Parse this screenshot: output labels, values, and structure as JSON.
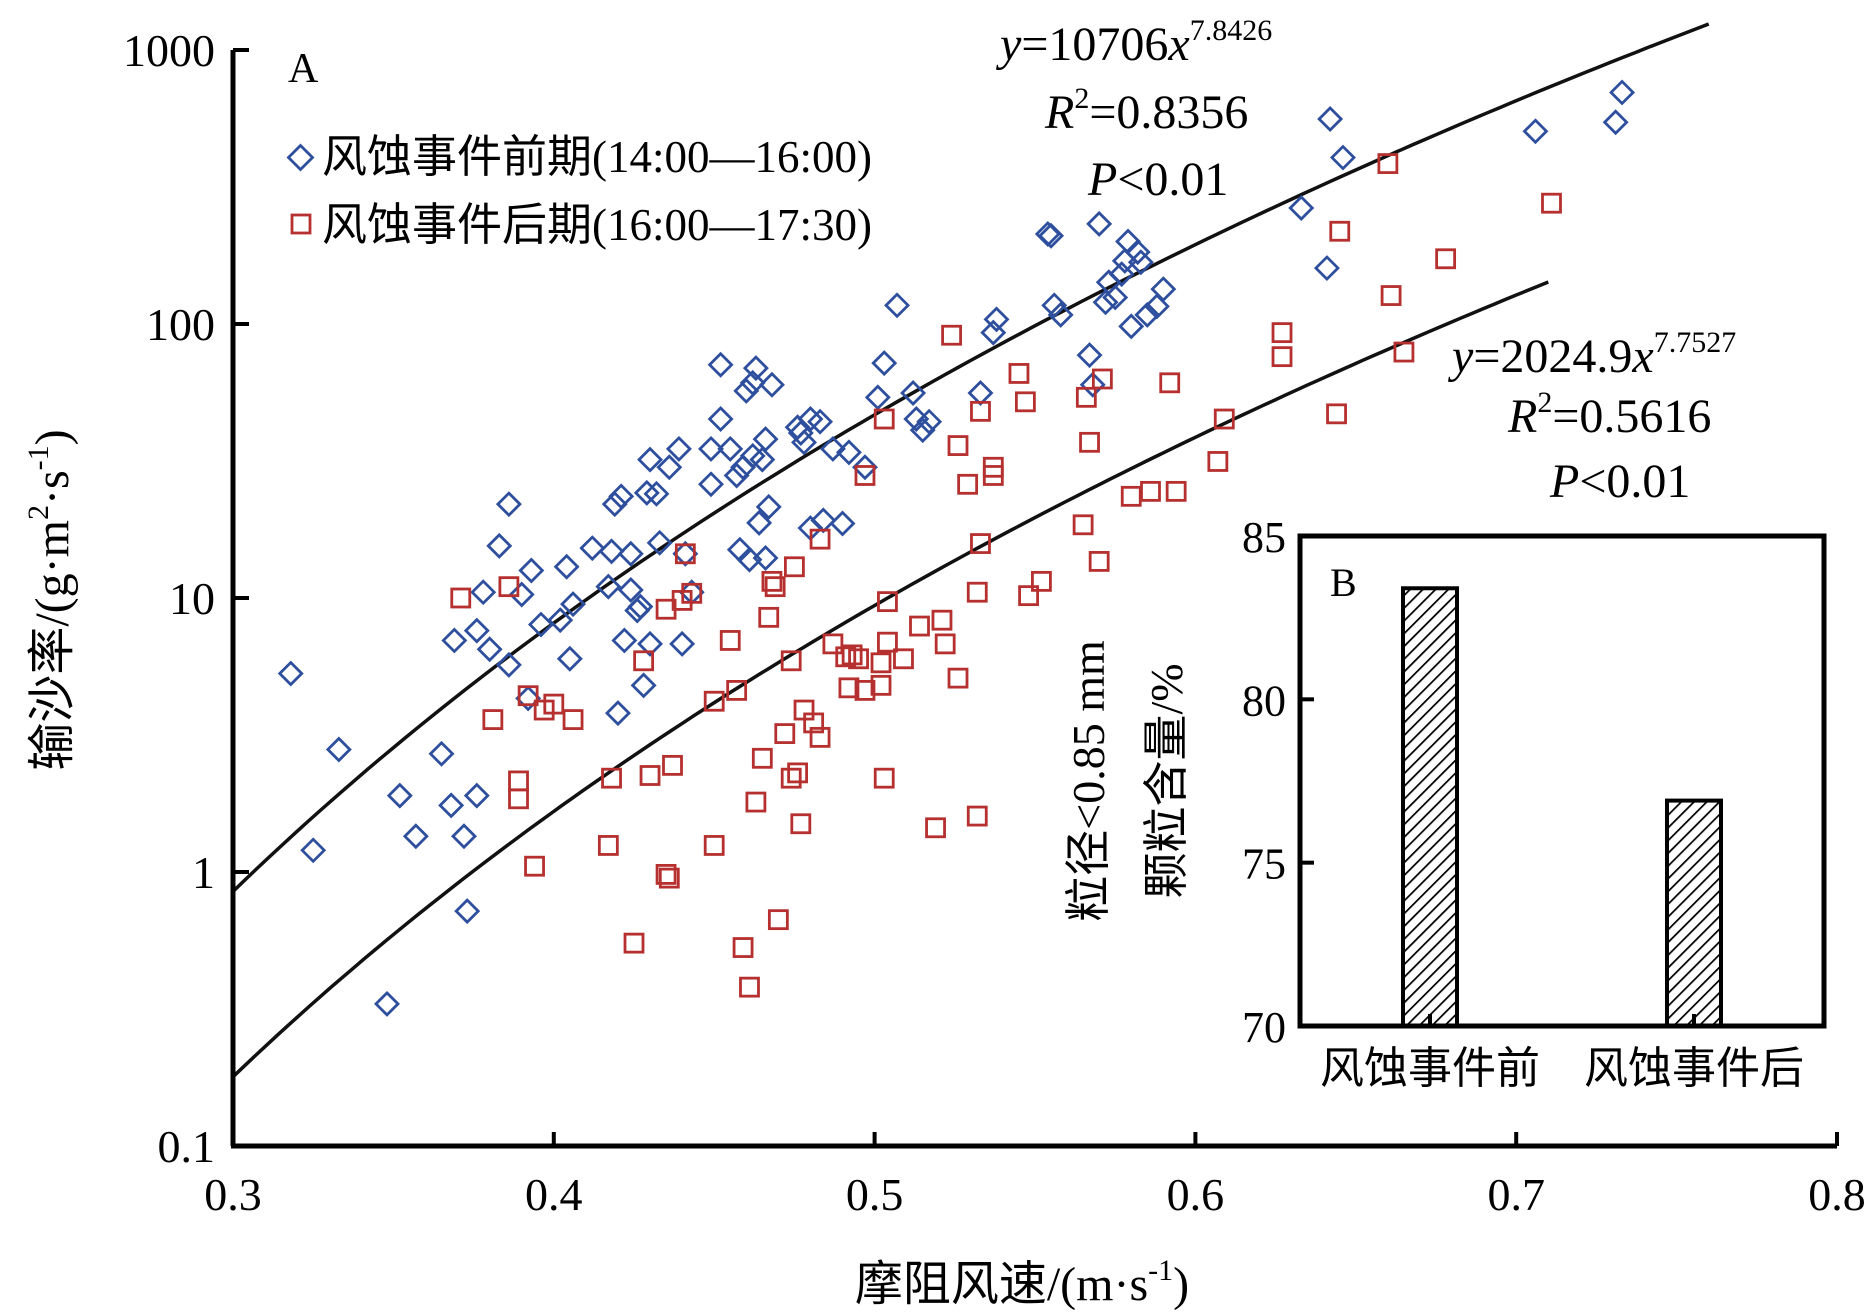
{
  "colors": {
    "before": "#2e4f9e",
    "after": "#b5302e",
    "axis": "#000000",
    "curve": "#111111"
  },
  "chart_data": [
    {
      "panel": "A",
      "type": "scatter",
      "xlabel": "摩阻风速/(m·s",
      "xlabel_sup": "-1",
      "xlabel_close": ")",
      "ylabel": "输沙率/(g·m",
      "ylabel_sup1": "2",
      "ylabel_mid": "·s",
      "ylabel_sup2": "-1",
      "ylabel_close": ")",
      "xlim": [
        0.3,
        0.8
      ],
      "ylim": [
        0.1,
        1000
      ],
      "yscale": "log",
      "x_ticks": [
        0.3,
        0.4,
        0.5,
        0.6,
        0.7,
        0.8
      ],
      "x_tick_labels": [
        "0.3",
        "0.4",
        "0.5",
        "0.6",
        "0.7",
        "0.8"
      ],
      "y_ticks": [
        0.1,
        1,
        10,
        100,
        1000
      ],
      "y_tick_labels": [
        "0.1",
        "1",
        "10",
        "100",
        "1000"
      ],
      "grid": false,
      "legend_position": "top-left",
      "series": [
        {
          "name": "风蚀事件前期(14:00—16:00)",
          "marker": "diamond",
          "color": "#2e4f9e",
          "fit": {
            "a": 10706,
            "b": 7.8426,
            "x_range": [
              0.3,
              0.76
            ]
          },
          "points": [
            [
              0.318,
              5.3
            ],
            [
              0.325,
              1.2
            ],
            [
              0.333,
              2.8
            ],
            [
              0.348,
              0.33
            ],
            [
              0.352,
              1.9
            ],
            [
              0.357,
              1.35
            ],
            [
              0.365,
              2.7
            ],
            [
              0.368,
              1.75
            ],
            [
              0.369,
              7.0
            ],
            [
              0.372,
              1.35
            ],
            [
              0.373,
              0.72
            ],
            [
              0.376,
              1.9
            ],
            [
              0.378,
              10.5
            ],
            [
              0.376,
              7.6
            ],
            [
              0.38,
              6.5
            ],
            [
              0.383,
              15.5
            ],
            [
              0.386,
              5.7
            ],
            [
              0.386,
              22.0
            ],
            [
              0.39,
              10.3
            ],
            [
              0.392,
              4.3
            ],
            [
              0.393,
              12.6
            ],
            [
              0.396,
              8.0
            ],
            [
              0.402,
              8.3
            ],
            [
              0.404,
              13.0
            ],
            [
              0.405,
              6.0
            ],
            [
              0.406,
              9.5
            ],
            [
              0.412,
              15.2
            ],
            [
              0.417,
              11.0
            ],
            [
              0.418,
              14.8
            ],
            [
              0.419,
              22.0
            ],
            [
              0.421,
              23.5
            ],
            [
              0.42,
              3.8
            ],
            [
              0.424,
              10.7
            ],
            [
              0.422,
              7.0
            ],
            [
              0.424,
              14.5
            ],
            [
              0.426,
              9.0
            ],
            [
              0.427,
              9.3
            ],
            [
              0.428,
              4.8
            ],
            [
              0.429,
              24.2
            ],
            [
              0.43,
              32.0
            ],
            [
              0.43,
              6.8
            ],
            [
              0.432,
              24.0
            ],
            [
              0.433,
              15.9
            ],
            [
              0.436,
              30.0
            ],
            [
              0.439,
              35.0
            ],
            [
              0.44,
              6.8
            ],
            [
              0.441,
              14.5
            ],
            [
              0.443,
              10.5
            ],
            [
              0.449,
              35.0
            ],
            [
              0.449,
              26.0
            ],
            [
              0.452,
              71.0
            ],
            [
              0.452,
              45.0
            ],
            [
              0.455,
              35.0
            ],
            [
              0.457,
              28.0
            ],
            [
              0.458,
              15.0
            ],
            [
              0.459,
              30.0
            ],
            [
              0.46,
              57.0
            ],
            [
              0.461,
              13.8
            ],
            [
              0.462,
              33.0
            ],
            [
              0.463,
              69.0
            ],
            [
              0.462,
              61.0
            ],
            [
              0.464,
              18.8
            ],
            [
              0.465,
              32.0
            ],
            [
              0.466,
              38.0
            ],
            [
              0.466,
              14.0
            ],
            [
              0.467,
              21.5
            ],
            [
              0.468,
              60.0
            ],
            [
              0.476,
              42.0
            ],
            [
              0.477,
              40.0
            ],
            [
              0.478,
              37.0
            ],
            [
              0.48,
              18.0
            ],
            [
              0.48,
              45.0
            ],
            [
              0.483,
              44.0
            ],
            [
              0.484,
              19.2
            ],
            [
              0.487,
              35.0
            ],
            [
              0.49,
              18.7
            ],
            [
              0.492,
              34.0
            ],
            [
              0.497,
              30.0
            ],
            [
              0.501,
              54.0
            ],
            [
              0.503,
              72.0
            ],
            [
              0.507,
              117.0
            ],
            [
              0.512,
              56.0
            ],
            [
              0.513,
              45.0
            ],
            [
              0.515,
              41.0
            ],
            [
              0.517,
              44.0
            ],
            [
              0.533,
              56.0
            ],
            [
              0.537,
              93.0
            ],
            [
              0.538,
              104.0
            ],
            [
              0.554,
              213.0
            ],
            [
              0.555,
              210.0
            ],
            [
              0.556,
              117.0
            ],
            [
              0.558,
              108.0
            ],
            [
              0.567,
              77.0
            ],
            [
              0.568,
              60.0
            ],
            [
              0.57,
              232.0
            ],
            [
              0.572,
              120.0
            ],
            [
              0.573,
              142.0
            ],
            [
              0.575,
              125.0
            ],
            [
              0.577,
              152.0
            ],
            [
              0.578,
              170.0
            ],
            [
              0.579,
              200.0
            ],
            [
              0.58,
              98.0
            ],
            [
              0.582,
              183.0
            ],
            [
              0.583,
              168.0
            ],
            [
              0.585,
              108.0
            ],
            [
              0.588,
              116.0
            ],
            [
              0.59,
              134.0
            ],
            [
              0.633,
              265.0
            ],
            [
              0.641,
              160.0
            ],
            [
              0.642,
              560.0
            ],
            [
              0.646,
              405.0
            ],
            [
              0.706,
              505.0
            ],
            [
              0.731,
              545.0
            ],
            [
              0.733,
              700.0
            ]
          ]
        },
        {
          "name": "风蚀事件后期(16:00—17:30)",
          "marker": "square",
          "color": "#b5302e",
          "fit": {
            "a": 2024.9,
            "b": 7.7527,
            "x_range": [
              0.3,
              0.71
            ]
          },
          "points": [
            [
              0.371,
              10.0
            ],
            [
              0.381,
              3.6
            ],
            [
              0.386,
              11.0
            ],
            [
              0.389,
              2.15
            ],
            [
              0.389,
              1.85
            ],
            [
              0.392,
              4.4
            ],
            [
              0.394,
              1.05
            ],
            [
              0.397,
              3.9
            ],
            [
              0.4,
              4.1
            ],
            [
              0.406,
              3.6
            ],
            [
              0.417,
              1.25
            ],
            [
              0.418,
              2.2
            ],
            [
              0.425,
              0.55
            ],
            [
              0.428,
              5.9
            ],
            [
              0.43,
              2.25
            ],
            [
              0.435,
              9.1
            ],
            [
              0.435,
              0.98
            ],
            [
              0.436,
              0.95
            ],
            [
              0.437,
              2.45
            ],
            [
              0.44,
              9.8
            ],
            [
              0.441,
              14.5
            ],
            [
              0.443,
              10.4
            ],
            [
              0.45,
              4.2
            ],
            [
              0.45,
              1.25
            ],
            [
              0.455,
              7.0
            ],
            [
              0.457,
              4.6
            ],
            [
              0.459,
              0.53
            ],
            [
              0.461,
              0.38
            ],
            [
              0.463,
              1.8
            ],
            [
              0.465,
              2.6
            ],
            [
              0.467,
              8.5
            ],
            [
              0.468,
              11.5
            ],
            [
              0.469,
              11.0
            ],
            [
              0.47,
              0.67
            ],
            [
              0.472,
              3.2
            ],
            [
              0.474,
              5.9
            ],
            [
              0.474,
              2.2
            ],
            [
              0.475,
              13.0
            ],
            [
              0.476,
              2.3
            ],
            [
              0.477,
              1.5
            ],
            [
              0.478,
              3.9
            ],
            [
              0.481,
              3.5
            ],
            [
              0.483,
              3.1
            ],
            [
              0.483,
              16.4
            ],
            [
              0.487,
              6.8
            ],
            [
              0.491,
              6.1
            ],
            [
              0.492,
              4.7
            ],
            [
              0.493,
              6.2
            ],
            [
              0.495,
              6.0
            ],
            [
              0.497,
              28.0
            ],
            [
              0.497,
              4.6
            ],
            [
              0.502,
              5.8
            ],
            [
              0.502,
              4.8
            ],
            [
              0.503,
              2.2
            ],
            [
              0.503,
              45.0
            ],
            [
              0.504,
              6.9
            ],
            [
              0.504,
              9.7
            ],
            [
              0.509,
              6.0
            ],
            [
              0.514,
              7.9
            ],
            [
              0.519,
              1.45
            ],
            [
              0.521,
              8.3
            ],
            [
              0.522,
              6.8
            ],
            [
              0.524,
              91.0
            ],
            [
              0.526,
              5.1
            ],
            [
              0.526,
              36.0
            ],
            [
              0.529,
              26.0
            ],
            [
              0.532,
              10.5
            ],
            [
              0.532,
              1.6
            ],
            [
              0.533,
              15.8
            ],
            [
              0.533,
              48.0
            ],
            [
              0.537,
              28.0
            ],
            [
              0.537,
              30.0
            ],
            [
              0.545,
              66.0
            ],
            [
              0.547,
              52.0
            ],
            [
              0.548,
              10.2
            ],
            [
              0.552,
              11.5
            ],
            [
              0.565,
              18.5
            ],
            [
              0.566,
              54.0
            ],
            [
              0.567,
              37.0
            ],
            [
              0.57,
              13.6
            ],
            [
              0.571,
              63.0
            ],
            [
              0.58,
              23.5
            ],
            [
              0.586,
              24.5
            ],
            [
              0.592,
              61.0
            ],
            [
              0.594,
              24.5
            ],
            [
              0.607,
              31.5
            ],
            [
              0.609,
              45.0
            ],
            [
              0.627,
              93.0
            ],
            [
              0.627,
              76.0
            ],
            [
              0.644,
              47.0
            ],
            [
              0.645,
              218.0
            ],
            [
              0.66,
              385.0
            ],
            [
              0.661,
              127.0
            ],
            [
              0.665,
              79.0
            ],
            [
              0.678,
              173.0
            ],
            [
              0.711,
              276.0
            ]
          ]
        }
      ],
      "annotations": [
        {
          "panel_label": "A"
        },
        {
          "y_prefix": "y",
          "equation": "=10706",
          "x_var": "x",
          "exponent": "7.8426",
          "r2_prefix": "R",
          "r2_sup": "2",
          "r2_value": "=0.8356",
          "p_prefix": "P",
          "p_value": "<0.01"
        },
        {
          "y_prefix": "y",
          "equation": "=2024.9",
          "x_var": "x",
          "exponent": "7.7527",
          "r2_prefix": "R",
          "r2_sup": "2",
          "r2_value": "=0.5616",
          "p_prefix": "P",
          "p_value": "<0.01"
        }
      ]
    },
    {
      "panel": "B",
      "type": "bar",
      "ylabel_line1": "粒径<0.85 mm",
      "ylabel_line2": "颗粒含量/%",
      "categories": [
        "风蚀事件前",
        "风蚀事件后"
      ],
      "values": [
        83.4,
        76.9
      ],
      "ylim": [
        70,
        85
      ],
      "y_ticks": [
        70,
        75,
        80,
        85
      ],
      "y_tick_labels": [
        "70",
        "75",
        "80",
        "85"
      ],
      "bar_fill": "diagonal hatch",
      "grid": false
    }
  ]
}
